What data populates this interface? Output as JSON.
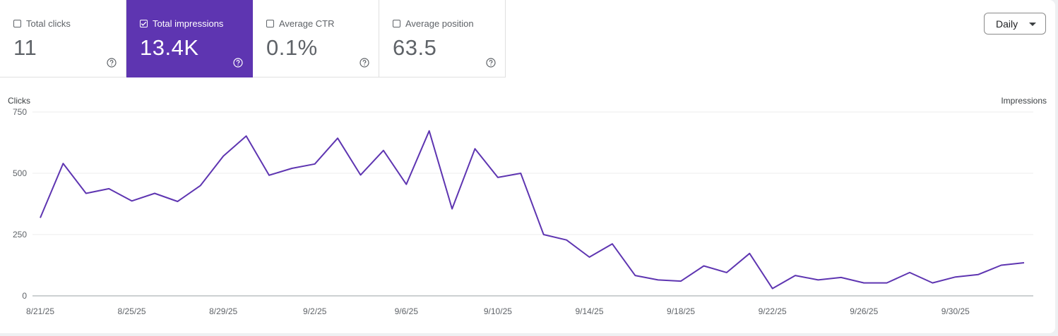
{
  "metrics": [
    {
      "label": "Total clicks",
      "value": "11",
      "checked": false
    },
    {
      "label": "Total impressions",
      "value": "13.4K",
      "checked": true
    },
    {
      "label": "Average CTR",
      "value": "0.1%",
      "checked": false
    },
    {
      "label": "Average position",
      "value": "63.5",
      "checked": false
    }
  ],
  "period_selector": {
    "label": "Daily"
  },
  "colors": {
    "accent": "#5e35b1",
    "line": "#5e35b1"
  },
  "icons": {
    "help": "help-circle-icon",
    "caret": "caret-down-icon",
    "checkbox": "checkbox-icon"
  },
  "chart_data": {
    "type": "line",
    "left_axis_label": "Clicks",
    "right_axis_label": "Impressions",
    "ylim": [
      0,
      750
    ],
    "yticks": [
      750,
      500,
      250,
      0
    ],
    "ytick_labels": [
      "750",
      "500",
      "250",
      "0"
    ],
    "x_tick_labels": [
      "8/21/25",
      "8/25/25",
      "8/29/25",
      "9/2/25",
      "9/6/25",
      "9/10/25",
      "9/14/25",
      "9/18/25",
      "9/22/25",
      "9/26/25",
      "9/30/25"
    ],
    "x_dates": [
      "8/21/25",
      "8/22/25",
      "8/23/25",
      "8/24/25",
      "8/25/25",
      "8/26/25",
      "8/27/25",
      "8/28/25",
      "8/29/25",
      "8/30/25",
      "8/31/25",
      "9/1/25",
      "9/2/25",
      "9/3/25",
      "9/4/25",
      "9/5/25",
      "9/6/25",
      "9/7/25",
      "9/8/25",
      "9/9/25",
      "9/10/25",
      "9/11/25",
      "9/12/25",
      "9/13/25",
      "9/14/25",
      "9/15/25",
      "9/16/25",
      "9/17/25",
      "9/18/25",
      "9/19/25",
      "9/20/25",
      "9/21/25",
      "9/22/25",
      "9/23/25",
      "9/24/25",
      "9/25/25",
      "9/26/25",
      "9/27/25",
      "9/28/25",
      "9/29/25",
      "9/30/25",
      "10/1/25",
      "10/2/25",
      "10/3/25"
    ],
    "series": [
      {
        "values": [
          318,
          540,
          418,
          437,
          387,
          418,
          385,
          450,
          570,
          652,
          492,
          520,
          538,
          643,
          493,
          593,
          455,
          673,
          355,
          600,
          483,
          500,
          250,
          228,
          158,
          212,
          83,
          65,
          60,
          122,
          95,
          173,
          30,
          83,
          65,
          75,
          53,
          53,
          95,
          53,
          77,
          87,
          125,
          135
        ],
        "color": "#5e35b1"
      }
    ],
    "grid": true
  }
}
